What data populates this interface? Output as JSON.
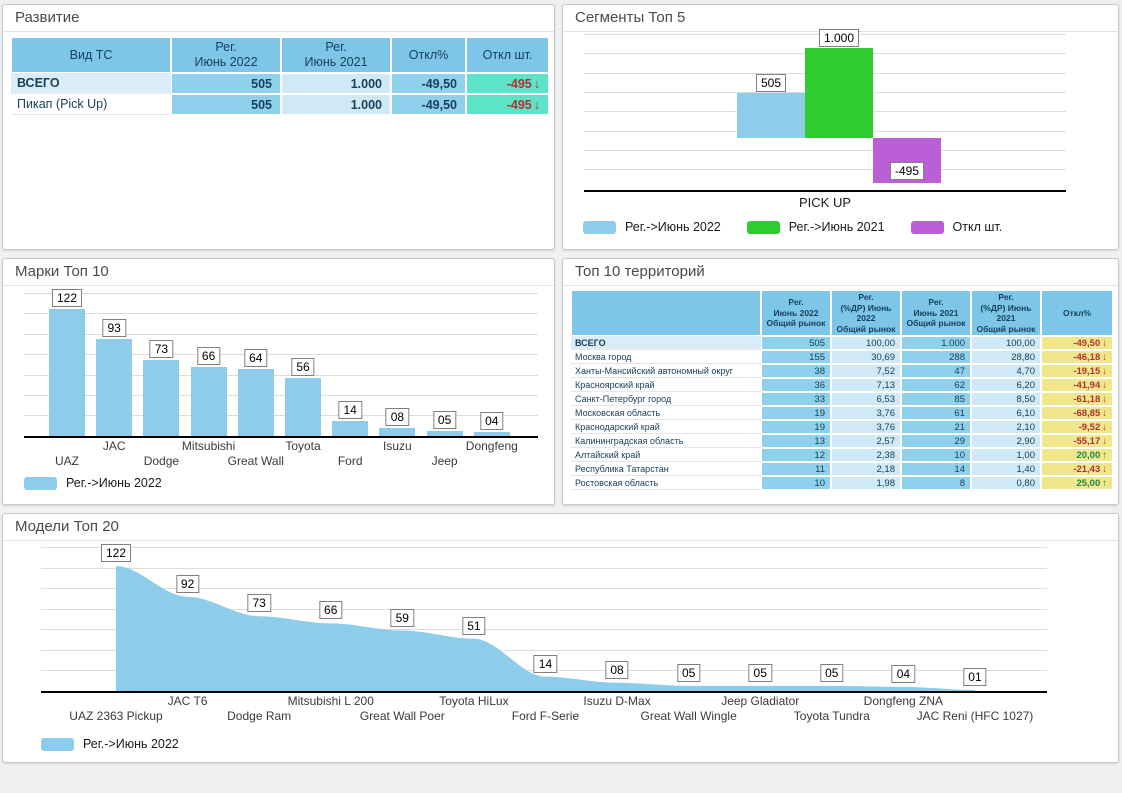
{
  "colors": {
    "series_2022": "#8dcdeb",
    "series_2021": "#2fcc2f",
    "series_deviation": "#ba5fd6",
    "table_header": "#7dc6e8",
    "cell_blue": "#8fd0ec",
    "cell_light_blue": "#cfe9f7",
    "cell_teal": "#5ce3c8",
    "cell_khaki": "#f0e68c",
    "row_total": "#daedf8",
    "negative": "#b03333",
    "positive": "#1e8449",
    "text_navy": "#17405c"
  },
  "panels": {
    "development": {
      "title": "Развитие",
      "table": {
        "columns": [
          "Вид ТС",
          "Рег.\nИюнь 2022",
          "Рег.\nИюнь 2021",
          "Откл%",
          "Откл шт."
        ],
        "rows": [
          {
            "type": "ВСЕГО",
            "bold": true,
            "reg_jun_2022": "505",
            "reg_jun_2021": "1.000",
            "dev_pct": "-49,50",
            "dev_units": "-495",
            "trend": "down"
          },
          {
            "type": "Пикап (Pick Up)",
            "bold": false,
            "reg_jun_2022": "505",
            "reg_jun_2021": "1.000",
            "dev_pct": "-49,50",
            "dev_units": "-495",
            "trend": "down"
          }
        ]
      }
    },
    "segments": {
      "title": "Сегменты Топ 5"
    },
    "brands": {
      "title": "Марки Топ 10"
    },
    "territories": {
      "title": "Топ 10 территорий",
      "table": {
        "columns": [
          "",
          "Рег.\nИюнь 2022\nОбщий рынок",
          "Рег.\n(%ДР) Июнь 2022\nОбщий рынок",
          "Рег.\nИюнь 2021\nОбщий рынок",
          "Рег.\n(%ДР) Июнь 2021\nОбщий рынок",
          "Откл%"
        ],
        "rows": [
          {
            "territory": "ВСЕГО",
            "bold": true,
            "reg_2022": "505",
            "share_2022": "100,00",
            "reg_2021": "1.000",
            "share_2021": "100,00",
            "dev_pct": "-49,50",
            "trend": "down"
          },
          {
            "territory": "Москва город",
            "bold": false,
            "reg_2022": "155",
            "share_2022": "30,69",
            "reg_2021": "288",
            "share_2021": "28,80",
            "dev_pct": "-46,18",
            "trend": "down"
          },
          {
            "territory": "Ханты-Мансийский автономный округ",
            "bold": false,
            "reg_2022": "38",
            "share_2022": "7,52",
            "reg_2021": "47",
            "share_2021": "4,70",
            "dev_pct": "-19,15",
            "trend": "down"
          },
          {
            "territory": "Красноярский край",
            "bold": false,
            "reg_2022": "36",
            "share_2022": "7,13",
            "reg_2021": "62",
            "share_2021": "6,20",
            "dev_pct": "-41,94",
            "trend": "down"
          },
          {
            "territory": "Санкт-Петербург город",
            "bold": false,
            "reg_2022": "33",
            "share_2022": "6,53",
            "reg_2021": "85",
            "share_2021": "8,50",
            "dev_pct": "-61,18",
            "trend": "down"
          },
          {
            "territory": "Московская область",
            "bold": false,
            "reg_2022": "19",
            "share_2022": "3,76",
            "reg_2021": "61",
            "share_2021": "6,10",
            "dev_pct": "-68,85",
            "trend": "down"
          },
          {
            "territory": "Краснодарский край",
            "bold": false,
            "reg_2022": "19",
            "share_2022": "3,76",
            "reg_2021": "21",
            "share_2021": "2,10",
            "dev_pct": "-9,52",
            "trend": "down"
          },
          {
            "territory": "Калининградская область",
            "bold": false,
            "reg_2022": "13",
            "share_2022": "2,57",
            "reg_2021": "29",
            "share_2021": "2,90",
            "dev_pct": "-55,17",
            "trend": "down"
          },
          {
            "territory": "Алтайский край",
            "bold": false,
            "reg_2022": "12",
            "share_2022": "2,38",
            "reg_2021": "10",
            "share_2021": "1,00",
            "dev_pct": "20,00",
            "trend": "up"
          },
          {
            "territory": "Республика Татарстан",
            "bold": false,
            "reg_2022": "11",
            "share_2022": "2,18",
            "reg_2021": "14",
            "share_2021": "1,40",
            "dev_pct": "-21,43",
            "trend": "down"
          },
          {
            "territory": "Ростовская область",
            "bold": false,
            "reg_2022": "10",
            "share_2022": "1,98",
            "reg_2021": "8",
            "share_2021": "0,80",
            "dev_pct": "25,00",
            "trend": "up"
          }
        ]
      }
    },
    "models": {
      "title": "Модели Топ 20"
    }
  },
  "chart_data": [
    {
      "id": "segments",
      "type": "bar",
      "title": "Сегменты Топ 5",
      "categories": [
        "PICK UP"
      ],
      "series": [
        {
          "name": "Рег.->Июнь 2022",
          "color_key": "series_2022",
          "values": [
            505
          ],
          "labels": [
            "505"
          ]
        },
        {
          "name": "Рег.->Июнь 2021",
          "color_key": "series_2021",
          "values": [
            1000
          ],
          "labels": [
            "1.000"
          ]
        },
        {
          "name": "Откл шт.",
          "color_key": "series_deviation",
          "values": [
            -495
          ],
          "labels": [
            "-495"
          ]
        }
      ],
      "ylim": [
        -550,
        1050
      ],
      "grid": true,
      "legend_position": "bottom-left"
    },
    {
      "id": "brands",
      "type": "bar",
      "title": "Марки Топ 10",
      "categories": [
        "UAZ",
        "JAC",
        "Dodge",
        "Mitsubishi",
        "Great Wall",
        "Toyota",
        "Ford",
        "Isuzu",
        "Jeep",
        "Dongfeng"
      ],
      "series": [
        {
          "name": "Рег.->Июнь 2022",
          "color_key": "series_2022",
          "values": [
            122,
            93,
            73,
            66,
            64,
            56,
            14,
            8,
            5,
            4
          ],
          "labels": [
            "122",
            "93",
            "73",
            "66",
            "64",
            "56",
            "14",
            "08",
            "05",
            "04"
          ]
        }
      ],
      "ylim": [
        0,
        140
      ],
      "grid": true,
      "legend_position": "bottom-left"
    },
    {
      "id": "models",
      "type": "area",
      "title": "Модели Топ 20",
      "categories": [
        "UAZ 2363 Pickup",
        "JAC T6",
        "Dodge Ram",
        "Mitsubishi L 200",
        "Great Wall Poer",
        "Toyota HiLux",
        "Ford F-Serie",
        "Isuzu D-Max",
        "Great Wall Wingle",
        "Jeep Gladiator",
        "Toyota Tundra",
        "Dongfeng ZNA",
        "JAC Reni (HFC 1027)"
      ],
      "series": [
        {
          "name": "Рег.->Июнь 2022",
          "color_key": "series_2022",
          "values": [
            122,
            92,
            73,
            66,
            59,
            51,
            14,
            8,
            5,
            5,
            5,
            4,
            1
          ],
          "labels": [
            "122",
            "92",
            "73",
            "66",
            "59",
            "51",
            "14",
            "08",
            "05",
            "05",
            "05",
            "04",
            "01"
          ]
        }
      ],
      "ylim": [
        0,
        140
      ],
      "grid": true,
      "legend_position": "bottom-left"
    }
  ]
}
